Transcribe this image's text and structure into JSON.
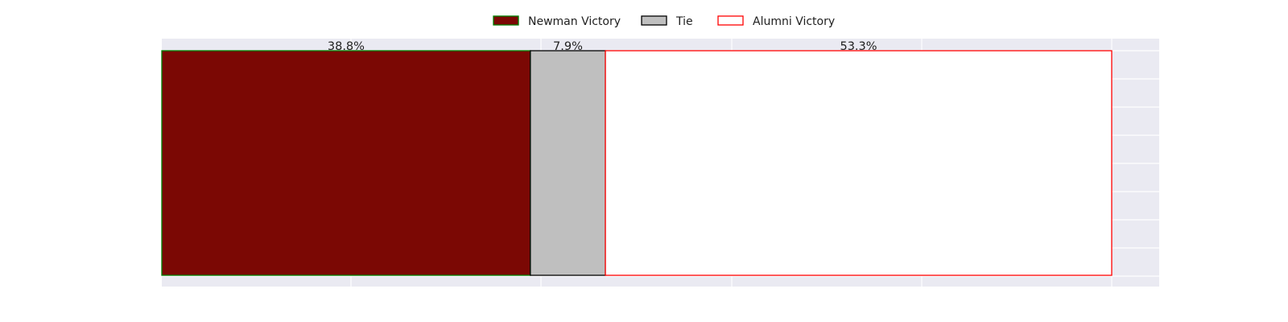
{
  "chart_data": {
    "type": "bar",
    "orientation": "horizontal",
    "stacked": true,
    "categories": [
      ""
    ],
    "series": [
      {
        "name": "Newman Victory",
        "values": [
          38.8
        ],
        "label": "38.8%",
        "fill": "#7b0804",
        "edge": "#008000"
      },
      {
        "name": "Tie",
        "values": [
          7.9
        ],
        "label": "7.9%",
        "fill": "#bfbfbf",
        "edge": "#000000"
      },
      {
        "name": "Alumni Victory",
        "values": [
          53.3
        ],
        "label": "53.3%",
        "fill": "#ffffff",
        "edge": "#ff0000"
      }
    ],
    "xlim": [
      0,
      105
    ],
    "axes_visible": false,
    "grid": true,
    "legend_position": "top-center",
    "colors": {
      "axes_background": "#eaeaf2",
      "grid": "#ffffff",
      "text": "#222222"
    }
  }
}
